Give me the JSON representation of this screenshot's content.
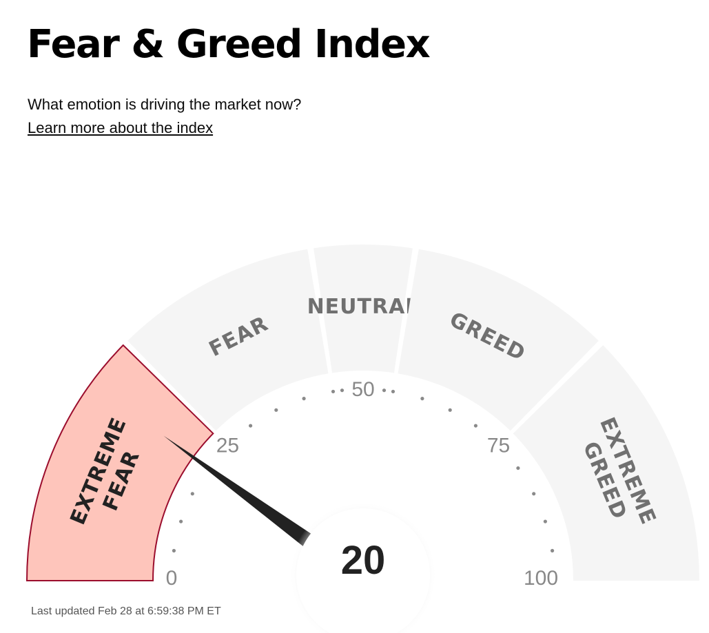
{
  "header": {
    "title": "Fear & Greed Index",
    "subtitle": "What emotion is driving the market now?",
    "learn_more_link": "Learn more about the index"
  },
  "gauge": {
    "value": 20,
    "min": 0,
    "max": 100,
    "active_zone": "extreme-fear",
    "zones": [
      {
        "id": "extreme-fear",
        "lines": [
          "EXTREME",
          "FEAR"
        ],
        "from": 0,
        "to": 25
      },
      {
        "id": "fear",
        "lines": [
          "FEAR"
        ],
        "from": 25,
        "to": 45
      },
      {
        "id": "neutral",
        "lines": [
          "NEUTRAL"
        ],
        "from": 45,
        "to": 55
      },
      {
        "id": "greed",
        "lines": [
          "GREED"
        ],
        "from": 55,
        "to": 75
      },
      {
        "id": "extreme-greed",
        "lines": [
          "EXTREME",
          "GREED"
        ],
        "from": 75,
        "to": 100
      }
    ],
    "scale_labels": [
      "0",
      "25",
      "50",
      "75",
      "100"
    ],
    "colors": {
      "zone_fill": "#f5f5f5",
      "zone_text": "#707070",
      "active_fill": "#fec5bb",
      "active_stroke": "#9b0d2d",
      "active_text": "#222222",
      "needle": "#222222",
      "tick_label": "#888888",
      "value_text": "#222222"
    }
  },
  "footer": {
    "last_updated": "Last updated Feb 28 at 6:59:38 PM ET"
  }
}
